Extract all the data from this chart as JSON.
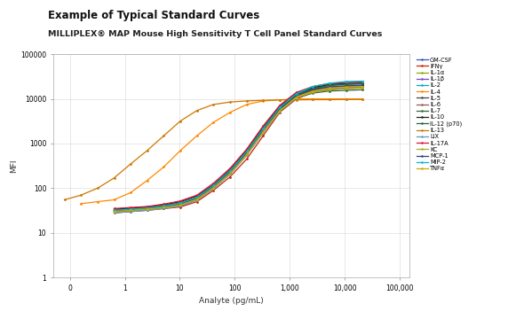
{
  "title_line1": "Example of Typical Standard Curves",
  "title_line2": "MILLIPLEX® MAP Mouse High Sensitivity T Cell Panel Standard Curves",
  "xlabel": "Analyte (pg/mL)",
  "ylabel": "MFI",
  "background": "#ffffff",
  "series": [
    {
      "label": "GM-CSF",
      "color": "#3355bb",
      "x_pts": [
        0.64,
        1.28,
        2.56,
        5.12,
        10.24,
        20.5,
        41,
        82,
        164,
        328,
        655,
        1310,
        2621,
        5243,
        10486,
        20971
      ],
      "y_pts": [
        30,
        32,
        34,
        36,
        40,
        55,
        100,
        220,
        600,
        2000,
        6000,
        12000,
        17000,
        20000,
        21000,
        21500
      ]
    },
    {
      "label": "IFNγ",
      "color": "#cc2200",
      "x_pts": [
        0.64,
        1.28,
        2.56,
        5.12,
        10.24,
        20.5,
        41,
        82,
        164,
        328,
        655,
        1310,
        2621,
        5243,
        10486,
        20971
      ],
      "y_pts": [
        28,
        30,
        32,
        35,
        38,
        50,
        90,
        180,
        450,
        1500,
        5000,
        10000,
        14000,
        16000,
        17000,
        17500
      ]
    },
    {
      "label": "IL-1α",
      "color": "#88aa00",
      "x_pts": [
        0.64,
        1.28,
        2.56,
        5.12,
        10.24,
        20.5,
        41,
        82,
        164,
        328,
        655,
        1310,
        2621,
        5243,
        10486,
        20971
      ],
      "y_pts": [
        32,
        34,
        36,
        40,
        45,
        60,
        110,
        230,
        620,
        2100,
        6200,
        12500,
        17500,
        20500,
        21500,
        22000
      ]
    },
    {
      "label": "IL-1β",
      "color": "#7744cc",
      "x_pts": [
        0.64,
        1.28,
        2.56,
        5.12,
        10.24,
        20.5,
        41,
        82,
        164,
        328,
        655,
        1310,
        2621,
        5243,
        10486,
        20971
      ],
      "y_pts": [
        31,
        33,
        35,
        38,
        43,
        58,
        105,
        210,
        560,
        1800,
        5500,
        11000,
        15500,
        18000,
        19000,
        19500
      ]
    },
    {
      "label": "IL-2",
      "color": "#00aacc",
      "x_pts": [
        0.64,
        1.28,
        2.56,
        5.12,
        10.24,
        20.5,
        41,
        82,
        164,
        328,
        655,
        1310,
        2621,
        5243,
        10486,
        20971
      ],
      "y_pts": [
        29,
        31,
        33,
        36,
        41,
        56,
        102,
        215,
        580,
        1900,
        5800,
        12000,
        18000,
        21000,
        23000,
        24000
      ]
    },
    {
      "label": "IL-4",
      "color": "#ff8800",
      "x_pts": [
        0.16,
        0.32,
        0.64,
        1.28,
        2.56,
        5.12,
        10.24,
        20.5,
        41,
        82,
        164,
        328,
        655,
        1310,
        2621,
        5243,
        10486,
        20971
      ],
      "y_pts": [
        45,
        50,
        55,
        80,
        150,
        300,
        700,
        1500,
        3000,
        5000,
        7500,
        9000,
        9500,
        10000,
        10000,
        10000,
        10000,
        10000
      ]
    },
    {
      "label": "IL-5",
      "color": "#444444",
      "x_pts": [
        0.64,
        1.28,
        2.56,
        5.12,
        10.24,
        20.5,
        41,
        82,
        164,
        328,
        655,
        1310,
        2621,
        5243,
        10486,
        20971
      ],
      "y_pts": [
        33,
        35,
        37,
        41,
        47,
        63,
        115,
        240,
        650,
        2200,
        6500,
        12800,
        16500,
        18500,
        19500,
        20000
      ]
    },
    {
      "label": "IL-6",
      "color": "#995555",
      "x_pts": [
        0.64,
        1.28,
        2.56,
        5.12,
        10.24,
        20.5,
        41,
        82,
        164,
        328,
        655,
        1310,
        2621,
        5243,
        10486,
        20971
      ],
      "y_pts": [
        31,
        33,
        35,
        39,
        44,
        59,
        108,
        220,
        590,
        1950,
        5700,
        11500,
        15000,
        17000,
        18000,
        18500
      ]
    },
    {
      "label": "IL-7",
      "color": "#336633",
      "x_pts": [
        0.64,
        1.28,
        2.56,
        5.12,
        10.24,
        20.5,
        41,
        82,
        164,
        328,
        655,
        1310,
        2621,
        5243,
        10486,
        20971
      ],
      "y_pts": [
        30,
        32,
        34,
        37,
        42,
        57,
        103,
        218,
        570,
        1850,
        5300,
        10500,
        13500,
        15000,
        15500,
        16000
      ]
    },
    {
      "label": "IL-10",
      "color": "#222222",
      "x_pts": [
        0.64,
        1.28,
        2.56,
        5.12,
        10.24,
        20.5,
        41,
        82,
        164,
        328,
        655,
        1310,
        2621,
        5243,
        10486,
        20971
      ],
      "y_pts": [
        34,
        36,
        38,
        43,
        50,
        67,
        120,
        260,
        700,
        2300,
        6800,
        13500,
        18000,
        21000,
        22000,
        22500
      ]
    },
    {
      "label": "IL-12 (p70)",
      "color": "#226644",
      "x_pts": [
        0.64,
        1.28,
        2.56,
        5.12,
        10.24,
        20.5,
        41,
        82,
        164,
        328,
        655,
        1310,
        2621,
        5243,
        10486,
        20971
      ],
      "y_pts": [
        32,
        34,
        36,
        40,
        46,
        62,
        112,
        235,
        630,
        2050,
        6100,
        12200,
        17000,
        20000,
        21500,
        22000
      ]
    },
    {
      "label": "IL-13",
      "color": "#cc7700",
      "x_pts": [
        0.08,
        0.16,
        0.32,
        0.64,
        1.28,
        2.56,
        5.12,
        10.24,
        20.5,
        41,
        82,
        164,
        328,
        655,
        1310,
        2621,
        5243,
        10486,
        20971
      ],
      "y_pts": [
        55,
        70,
        100,
        170,
        350,
        700,
        1500,
        3200,
        5500,
        7500,
        8500,
        9000,
        9300,
        9500,
        9500,
        9600,
        9600,
        9700,
        9700
      ]
    },
    {
      "label": "LIX",
      "color": "#6699bb",
      "x_pts": [
        0.64,
        1.28,
        2.56,
        5.12,
        10.24,
        20.5,
        41,
        82,
        164,
        328,
        655,
        1310,
        2621,
        5243,
        10486,
        20971
      ],
      "y_pts": [
        28,
        30,
        32,
        35,
        40,
        54,
        98,
        205,
        540,
        1750,
        5200,
        10500,
        14500,
        16500,
        17500,
        18000
      ]
    },
    {
      "label": "IL-17A",
      "color": "#dd1133",
      "x_pts": [
        0.64,
        1.28,
        2.56,
        5.12,
        10.24,
        20.5,
        41,
        82,
        164,
        328,
        655,
        1310,
        2621,
        5243,
        10486,
        20971
      ],
      "y_pts": [
        35,
        37,
        39,
        44,
        52,
        70,
        130,
        280,
        750,
        2500,
        7200,
        14000,
        19000,
        22000,
        23500,
        24000
      ]
    },
    {
      "label": "KC",
      "color": "#aaaa22",
      "x_pts": [
        0.64,
        1.28,
        2.56,
        5.12,
        10.24,
        20.5,
        41,
        82,
        164,
        328,
        655,
        1310,
        2621,
        5243,
        10486,
        20971
      ],
      "y_pts": [
        30,
        32,
        34,
        37,
        42,
        57,
        103,
        218,
        570,
        1850,
        5400,
        10800,
        14000,
        16000,
        17000,
        17500
      ]
    },
    {
      "label": "MCP-1",
      "color": "#334477",
      "x_pts": [
        0.64,
        1.28,
        2.56,
        5.12,
        10.24,
        20.5,
        41,
        82,
        164,
        328,
        655,
        1310,
        2621,
        5243,
        10486,
        20971
      ],
      "y_pts": [
        31,
        33,
        35,
        38,
        44,
        59,
        108,
        225,
        600,
        1950,
        5800,
        11800,
        16000,
        18500,
        19500,
        20000
      ]
    },
    {
      "label": "MIP-2",
      "color": "#00bbcc",
      "x_pts": [
        0.64,
        1.28,
        2.56,
        5.12,
        10.24,
        20.5,
        41,
        82,
        164,
        328,
        655,
        1310,
        2621,
        5243,
        10486,
        20971
      ],
      "y_pts": [
        32,
        34,
        36,
        40,
        46,
        63,
        115,
        245,
        660,
        2150,
        6400,
        13000,
        19000,
        22500,
        24500,
        25000
      ]
    },
    {
      "label": "TNFα",
      "color": "#ccaa00",
      "x_pts": [
        0.64,
        1.28,
        2.56,
        5.12,
        10.24,
        20.5,
        41,
        82,
        164,
        328,
        655,
        1310,
        2621,
        5243,
        10486,
        20971
      ],
      "y_pts": [
        30,
        32,
        34,
        37,
        42,
        57,
        103,
        215,
        570,
        1850,
        5500,
        11000,
        15000,
        17500,
        18500,
        19000
      ]
    }
  ]
}
